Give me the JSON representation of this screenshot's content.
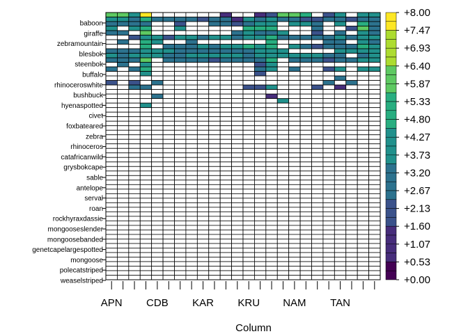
{
  "chart_data": {
    "type": "heatmap",
    "xlabel": "Column",
    "ylabel": "",
    "x_tick_labels": [
      "APN",
      "CDB",
      "KAR",
      "KRU",
      "NAM",
      "TAN"
    ],
    "n_columns": 24,
    "n_rows": 59,
    "y_tick_labels": [
      "baboon",
      "giraffe",
      "zebramountain",
      "blesbok",
      "steenbok",
      "buffalo",
      "rhinoceroswhite",
      "bushbuck",
      "hyenaspotted",
      "civet",
      "foxbateared",
      "zebra",
      "rhinoceros",
      "catafricanwild",
      "grysbokcape",
      "sable",
      "antelope",
      "serval",
      "roan",
      "rockhyraxdassie",
      "mongooseslender",
      "mongoosebanded",
      "genetcapelargespotted",
      "mongoose",
      "polecatstriped",
      "weaselstriped"
    ],
    "colorbar": {
      "min": 0.0,
      "max": 8.0,
      "tick_labels": [
        "+0.00",
        "+0.53",
        "+1.07",
        "+1.60",
        "+2.13",
        "+2.67",
        "+3.20",
        "+3.73",
        "+4.27",
        "+4.80",
        "+5.33",
        "+5.87",
        "+6.40",
        "+6.93",
        "+7.47",
        "+8.00"
      ],
      "palette": "viridis",
      "empty_color": "#ffffff"
    },
    "values": [
      [
        6,
        6,
        4,
        8,
        0,
        0,
        0,
        0,
        0,
        0,
        1,
        0,
        0,
        1,
        2,
        6,
        6,
        5,
        0,
        2,
        4,
        0,
        4,
        4
      ],
      [
        4,
        4,
        3,
        5,
        3,
        3,
        3,
        3,
        2,
        3,
        3,
        1,
        4,
        3,
        4,
        3,
        3,
        2,
        2,
        3,
        3,
        2,
        3,
        3
      ],
      [
        3,
        3,
        3,
        3,
        0,
        0,
        2,
        0,
        0,
        3,
        3,
        2,
        3,
        4,
        4,
        0,
        4,
        4,
        3,
        0,
        4,
        0,
        5,
        3
      ],
      [
        4,
        0,
        4,
        5,
        0,
        0,
        4,
        0,
        0,
        0,
        0,
        0,
        5,
        5,
        5,
        0,
        0,
        0,
        3,
        0,
        0,
        2,
        6,
        3
      ],
      [
        3,
        3,
        0,
        6,
        0,
        0,
        0,
        0,
        0,
        0,
        0,
        3,
        4,
        3,
        3,
        4,
        0,
        0,
        2,
        0,
        3,
        0,
        4,
        3
      ],
      [
        0,
        0,
        2,
        4,
        4,
        2,
        4,
        4,
        3,
        4,
        4,
        3,
        4,
        4,
        5,
        3,
        3,
        3,
        3,
        3,
        4,
        3,
        4,
        4
      ],
      [
        0,
        3,
        0,
        5,
        4,
        0,
        0,
        3,
        0,
        0,
        0,
        0,
        0,
        0,
        5,
        0,
        0,
        0,
        0,
        3,
        3,
        0,
        4,
        3
      ],
      [
        0,
        0,
        0,
        5,
        0,
        3,
        3,
        3,
        4,
        3,
        4,
        4,
        5,
        4,
        5,
        0,
        4,
        3,
        2,
        3,
        3,
        3,
        5,
        4
      ],
      [
        3,
        3,
        3,
        4,
        4,
        4,
        3,
        3,
        3,
        3,
        3,
        3,
        3,
        4,
        4,
        4,
        0,
        0,
        0,
        0,
        4,
        4,
        4,
        4
      ],
      [
        4,
        3,
        4,
        4,
        4,
        3,
        3,
        4,
        4,
        4,
        4,
        4,
        3,
        4,
        4,
        4,
        4,
        4,
        4,
        3,
        3,
        0,
        3,
        4
      ],
      [
        3,
        3,
        3,
        6,
        0,
        3,
        3,
        3,
        3,
        2,
        3,
        3,
        3,
        3,
        5,
        0,
        3,
        3,
        3,
        2,
        3,
        3,
        4,
        4
      ],
      [
        0,
        3,
        0,
        4,
        0,
        0,
        0,
        0,
        0,
        0,
        0,
        0,
        0,
        2,
        4,
        0,
        0,
        0,
        0,
        0,
        0,
        0,
        0,
        0
      ],
      [
        3,
        0,
        3,
        5,
        0,
        0,
        0,
        0,
        0,
        0,
        0,
        0,
        0,
        3,
        4,
        0,
        3,
        0,
        0,
        2,
        4,
        0,
        4,
        4
      ],
      [
        0,
        0,
        0,
        4,
        0,
        0,
        0,
        0,
        0,
        0,
        0,
        0,
        0,
        2,
        0,
        0,
        0,
        0,
        0,
        0,
        0,
        0,
        0,
        0
      ],
      [
        0,
        0,
        0,
        0,
        0,
        0,
        0,
        0,
        0,
        0,
        0,
        0,
        0,
        0,
        0,
        0,
        0,
        0,
        0,
        0,
        3,
        0,
        0,
        0
      ],
      [
        2,
        0,
        2,
        0,
        3,
        0,
        0,
        0,
        0,
        0,
        0,
        0,
        0,
        0,
        0,
        0,
        0,
        0,
        0,
        3,
        0,
        3,
        0,
        0
      ],
      [
        0,
        0,
        3,
        3,
        0,
        0,
        0,
        0,
        0,
        0,
        0,
        0,
        2,
        2,
        4,
        0,
        0,
        0,
        2,
        0,
        1,
        0,
        0,
        0
      ],
      [
        0,
        0,
        0,
        0,
        0,
        0,
        0,
        0,
        0,
        0,
        0,
        0,
        0,
        0,
        0,
        0,
        0,
        0,
        0,
        0,
        0,
        0,
        0,
        0
      ],
      [
        0,
        0,
        0,
        0,
        3,
        0,
        0,
        0,
        0,
        0,
        0,
        0,
        0,
        0,
        1,
        0,
        0,
        0,
        0,
        0,
        0,
        0,
        0,
        0
      ],
      [
        0,
        0,
        0,
        0,
        0,
        0,
        0,
        0,
        0,
        0,
        0,
        0,
        0,
        0,
        0,
        4,
        0,
        0,
        0,
        0,
        0,
        0,
        0,
        0
      ],
      [
        0,
        0,
        0,
        4,
        0,
        0,
        0,
        0,
        0,
        0,
        0,
        0,
        0,
        0,
        0,
        0,
        0,
        0,
        0,
        0,
        0,
        0,
        0,
        0
      ],
      [
        0,
        0,
        0,
        0,
        0,
        0,
        0,
        0,
        0,
        0,
        0,
        0,
        0,
        0,
        0,
        0,
        0,
        0,
        0,
        0,
        0,
        0,
        0,
        0
      ],
      [
        0,
        0,
        0,
        0,
        0,
        0,
        0,
        0,
        0,
        0,
        0,
        0,
        0,
        0,
        0,
        0,
        0,
        0,
        0,
        0,
        0,
        0,
        0,
        0
      ],
      [
        0,
        0,
        0,
        0,
        0,
        0,
        0,
        0,
        0,
        0,
        0,
        0,
        0,
        0,
        0,
        0,
        0,
        0,
        0,
        0,
        0,
        0,
        0,
        0
      ],
      [
        0,
        0,
        0,
        0,
        0,
        0,
        0,
        0,
        0,
        0,
        0,
        0,
        0,
        0,
        0,
        0,
        0,
        0,
        0,
        0,
        0,
        0,
        0,
        0
      ],
      [
        0,
        0,
        0,
        0,
        0,
        0,
        0,
        0,
        0,
        0,
        0,
        0,
        0,
        0,
        0,
        0,
        0,
        0,
        0,
        0,
        0,
        0,
        0,
        0
      ],
      [
        0,
        0,
        0,
        0,
        0,
        0,
        0,
        0,
        0,
        0,
        0,
        0,
        0,
        0,
        0,
        0,
        0,
        0,
        0,
        0,
        0,
        0,
        0,
        0
      ],
      [
        0,
        0,
        0,
        0,
        0,
        0,
        0,
        0,
        0,
        0,
        0,
        0,
        0,
        0,
        0,
        0,
        0,
        0,
        0,
        0,
        0,
        0,
        0,
        0
      ],
      [
        0,
        0,
        0,
        0,
        0,
        0,
        0,
        0,
        0,
        0,
        0,
        0,
        0,
        0,
        0,
        0,
        0,
        0,
        0,
        0,
        0,
        0,
        0,
        0
      ],
      [
        0,
        0,
        0,
        0,
        0,
        0,
        0,
        0,
        0,
        0,
        0,
        0,
        0,
        0,
        0,
        0,
        0,
        0,
        0,
        0,
        0,
        0,
        0,
        0
      ]
    ]
  }
}
